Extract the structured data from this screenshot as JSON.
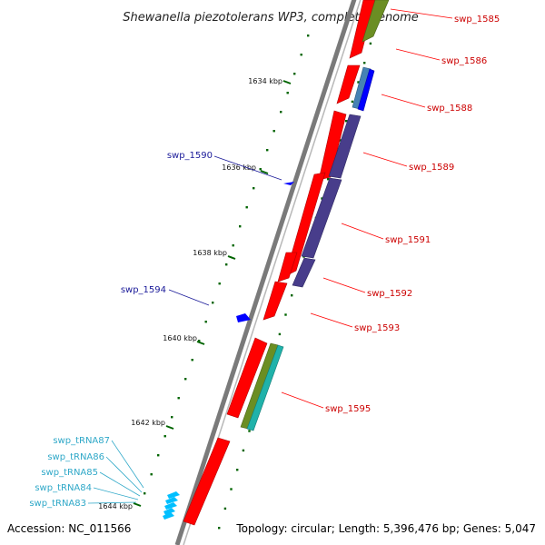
{
  "title": "Shewanella piezotolerans WP3, complete genome",
  "footer": {
    "accession": "Accession: NC_011566",
    "summary": "Topology: circular; Length: 5,396,476 bp; Genes: 5,047"
  },
  "ticks": [
    "1634 kbp",
    "1636 kbp",
    "1638 kbp",
    "1640 kbp",
    "1642 kbp",
    "1644 kbp"
  ],
  "genes_outer": [
    "swp_1585",
    "swp_1586",
    "swp_1588",
    "swp_1589",
    "swp_1591",
    "swp_1592",
    "swp_1593",
    "swp_1595"
  ],
  "genes_inner": [
    "swp_1590",
    "swp_1594"
  ],
  "trnas": [
    "swp_tRNA87",
    "swp_tRNA86",
    "swp_tRNA85",
    "swp_tRNA84",
    "swp_tRNA83"
  ],
  "colors": {
    "cds": "#ff0000",
    "olive": "#6b8e23",
    "blue": "#0000ff",
    "steel": "#4682b4",
    "purple": "#483d8b",
    "cyan": "#20b2aa",
    "trna": "#00bfff",
    "backbone": "#808080",
    "dots": "#006400",
    "label_red": "#cc0000",
    "label_blue": "#1a1a99",
    "label_cyan": "#2fa8c8"
  }
}
